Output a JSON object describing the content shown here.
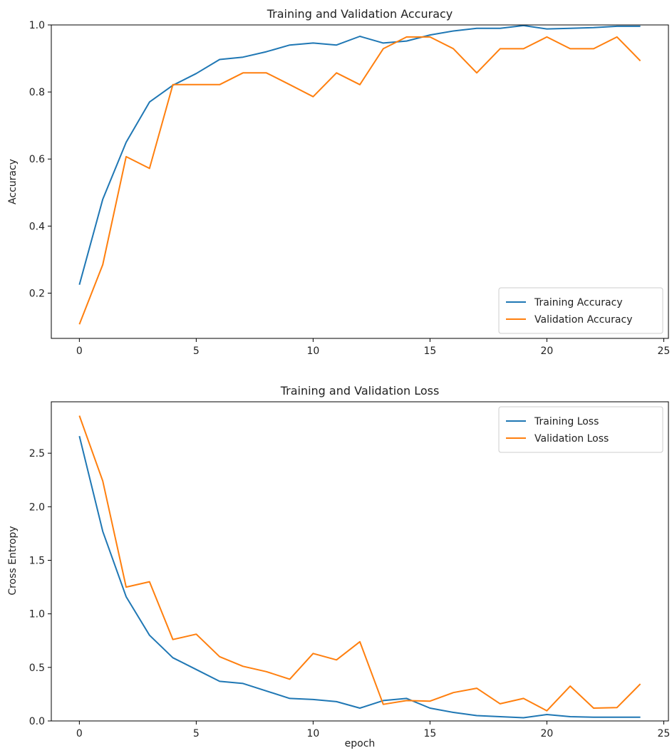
{
  "chart_data": [
    {
      "type": "line",
      "title": "Training and Validation Accuracy",
      "xlabel": "",
      "ylabel": "Accuracy",
      "xlim": [
        -1.2,
        25.2
      ],
      "ylim": [
        0.065,
        1.0
      ],
      "xticks": [
        0,
        5,
        10,
        15,
        20,
        25
      ],
      "yticks": [
        0.2,
        0.4,
        0.6,
        0.8,
        1.0
      ],
      "ytick_decimals": 1,
      "grid": false,
      "legend_position": "lower-right",
      "x": [
        0,
        1,
        2,
        3,
        4,
        5,
        6,
        7,
        8,
        9,
        10,
        11,
        12,
        13,
        14,
        15,
        16,
        17,
        18,
        19,
        20,
        21,
        22,
        23,
        24
      ],
      "series": [
        {
          "name": "Training Accuracy",
          "color": "#1f77b4",
          "values": [
            0.225,
            0.48,
            0.65,
            0.77,
            0.82,
            0.855,
            0.897,
            0.904,
            0.92,
            0.94,
            0.946,
            0.94,
            0.966,
            0.946,
            0.952,
            0.97,
            0.982,
            0.99,
            0.99,
            0.998,
            0.988,
            0.99,
            0.992,
            0.996,
            0.996
          ]
        },
        {
          "name": "Validation Accuracy",
          "color": "#ff7f0e",
          "values": [
            0.107,
            0.285,
            0.607,
            0.572,
            0.822,
            0.822,
            0.822,
            0.857,
            0.857,
            0.822,
            0.786,
            0.857,
            0.822,
            0.929,
            0.964,
            0.964,
            0.929,
            0.857,
            0.929,
            0.929,
            0.964,
            0.929,
            0.929,
            0.964,
            0.893
          ]
        }
      ]
    },
    {
      "type": "line",
      "title": "Training and Validation Loss",
      "xlabel": "epoch",
      "ylabel": "Cross Entropy",
      "xlim": [
        -1.2,
        25.2
      ],
      "ylim": [
        0.0,
        2.98
      ],
      "xticks": [
        0,
        5,
        10,
        15,
        20,
        25
      ],
      "yticks": [
        0.0,
        0.5,
        1.0,
        1.5,
        2.0,
        2.5
      ],
      "ytick_decimals": 1,
      "grid": false,
      "legend_position": "upper-right",
      "x": [
        0,
        1,
        2,
        3,
        4,
        5,
        6,
        7,
        8,
        9,
        10,
        11,
        12,
        13,
        14,
        15,
        16,
        17,
        18,
        19,
        20,
        21,
        22,
        23,
        24
      ],
      "series": [
        {
          "name": "Training Loss",
          "color": "#1f77b4",
          "values": [
            2.66,
            1.77,
            1.16,
            0.8,
            0.59,
            0.48,
            0.37,
            0.35,
            0.28,
            0.21,
            0.2,
            0.18,
            0.12,
            0.19,
            0.21,
            0.12,
            0.08,
            0.05,
            0.04,
            0.03,
            0.06,
            0.04,
            0.035,
            0.035,
            0.035
          ]
        },
        {
          "name": "Validation Loss",
          "color": "#ff7f0e",
          "values": [
            2.85,
            2.24,
            1.25,
            1.3,
            0.76,
            0.81,
            0.6,
            0.51,
            0.46,
            0.39,
            0.63,
            0.57,
            0.74,
            0.155,
            0.19,
            0.185,
            0.265,
            0.305,
            0.16,
            0.21,
            0.095,
            0.325,
            0.12,
            0.125,
            0.345
          ]
        }
      ]
    }
  ]
}
